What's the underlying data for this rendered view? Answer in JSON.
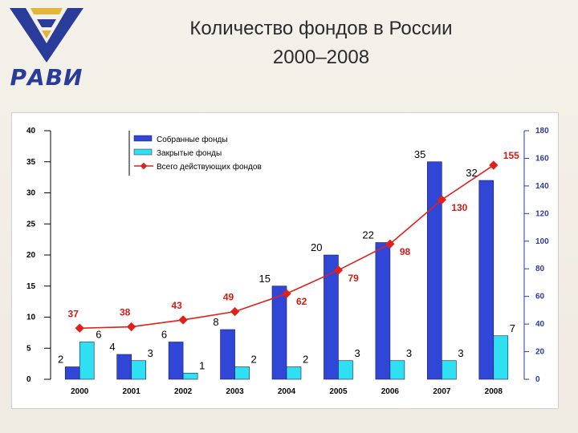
{
  "logo": {
    "text": "РАВИ"
  },
  "title": {
    "line1": "Количество фондов в России",
    "line2": "2000–2008"
  },
  "chart_data": {
    "type": "bar",
    "categories": [
      "2000",
      "2001",
      "2002",
      "2003",
      "2004",
      "2005",
      "2006",
      "2007",
      "2008"
    ],
    "series": [
      {
        "name": "Собранные фонды",
        "type": "bar",
        "axis": "left",
        "color": "#2f46d6",
        "values": [
          2,
          4,
          6,
          8,
          15,
          20,
          22,
          35,
          32
        ]
      },
      {
        "name": "Закрытые фонды",
        "type": "bar",
        "axis": "left",
        "color": "#2ee0f2",
        "values": [
          6,
          3,
          1,
          2,
          2,
          3,
          3,
          3,
          7
        ]
      },
      {
        "name": "Всего действующих фондов",
        "type": "line",
        "axis": "right",
        "color": "#e0201a",
        "values": [
          37,
          38,
          43,
          49,
          62,
          79,
          98,
          130,
          155
        ]
      }
    ],
    "y_left": {
      "ylim": [
        0,
        40
      ],
      "ticks": [
        "0",
        "5",
        "10",
        "15",
        "20",
        "25",
        "30",
        "35",
        "40"
      ]
    },
    "y_right": {
      "ylim": [
        0,
        180
      ],
      "ticks": [
        "0",
        "20",
        "40",
        "60",
        "80",
        "100",
        "120",
        "140",
        "160",
        "180"
      ]
    },
    "legend_position": "top-left"
  },
  "colors": {
    "logo_blue": "#2a3c9a",
    "logo_gold": "#e2b53b",
    "axis_right": "#2a3c9a",
    "line_label": "#d01c16"
  }
}
